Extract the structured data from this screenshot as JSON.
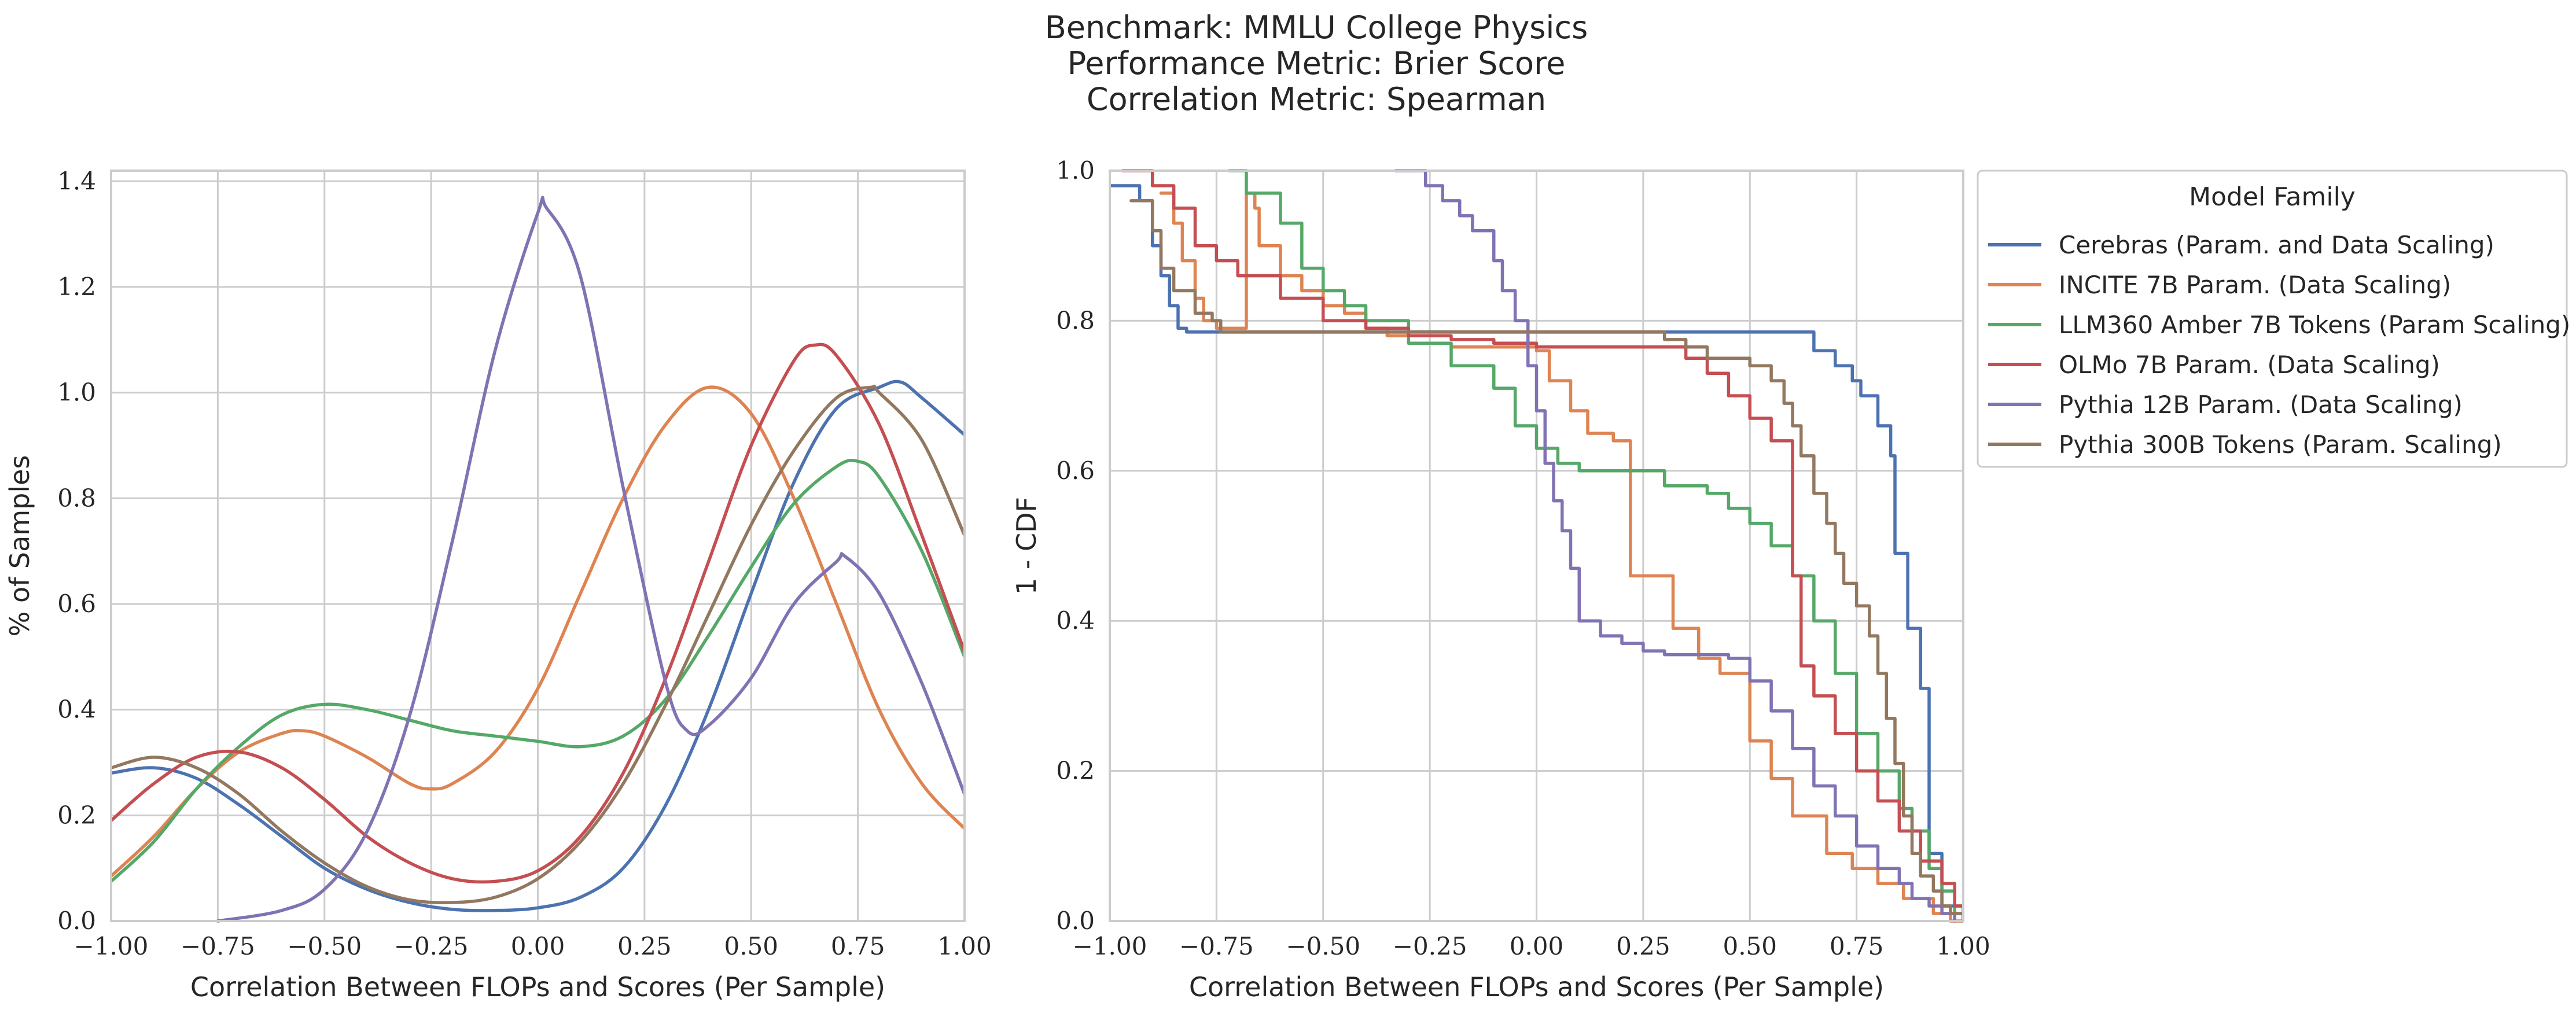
{
  "title_lines": [
    "Benchmark: MMLU College Physics",
    "Performance Metric: Brier Score",
    "Correlation Metric: Spearman"
  ],
  "legend": {
    "title": "Model Family",
    "location": "upper-right, outside plot"
  },
  "colors": {
    "Cerebras": "#4c72b0",
    "INCITE": "#dd8452",
    "LLM360": "#55a868",
    "OLMo": "#c44e52",
    "Pythia12B": "#8172b3",
    "Pythia300B": "#937860"
  },
  "chart_data": [
    {
      "type": "line",
      "subtype": "kde",
      "xlabel": "Correlation Between FLOPs and Scores (Per Sample)",
      "ylabel": "% of Samples",
      "xlim": [
        -1.0,
        1.0
      ],
      "ylim": [
        0.0,
        1.42
      ],
      "x_ticks": [
        "−1.00",
        "−0.75",
        "−0.50",
        "−0.25",
        "0.00",
        "0.25",
        "0.50",
        "0.75",
        "1.00"
      ],
      "y_ticks": [
        "0.0",
        "0.2",
        "0.4",
        "0.6",
        "0.8",
        "1.0",
        "1.2",
        "1.4"
      ],
      "grid": true,
      "series": [
        {
          "name": "Cerebras (Param. and Data Scaling)",
          "color": "#4c72b0",
          "x": [
            -1.0,
            -0.9,
            -0.8,
            -0.7,
            -0.6,
            -0.5,
            -0.4,
            -0.3,
            -0.2,
            -0.1,
            0.0,
            0.1,
            0.2,
            0.3,
            0.4,
            0.5,
            0.6,
            0.7,
            0.8,
            0.85,
            0.9,
            1.0
          ],
          "y": [
            0.28,
            0.29,
            0.27,
            0.22,
            0.16,
            0.1,
            0.06,
            0.035,
            0.022,
            0.02,
            0.025,
            0.045,
            0.1,
            0.22,
            0.4,
            0.62,
            0.83,
            0.97,
            1.01,
            1.02,
            0.99,
            0.92
          ]
        },
        {
          "name": "INCITE 7B Param. (Data Scaling)",
          "color": "#dd8452",
          "x": [
            -1.0,
            -0.9,
            -0.8,
            -0.7,
            -0.6,
            -0.55,
            -0.5,
            -0.4,
            -0.3,
            -0.25,
            -0.2,
            -0.1,
            0.0,
            0.1,
            0.2,
            0.3,
            0.4,
            0.5,
            0.6,
            0.7,
            0.8,
            0.9,
            1.0
          ],
          "y": [
            0.085,
            0.16,
            0.25,
            0.32,
            0.355,
            0.36,
            0.35,
            0.31,
            0.26,
            0.25,
            0.26,
            0.32,
            0.44,
            0.62,
            0.8,
            0.94,
            1.01,
            0.96,
            0.8,
            0.6,
            0.4,
            0.26,
            0.175
          ]
        },
        {
          "name": "LLM360 Amber 7B Tokens (Param Scaling)",
          "color": "#55a868",
          "x": [
            -1.0,
            -0.9,
            -0.8,
            -0.7,
            -0.6,
            -0.5,
            -0.4,
            -0.3,
            -0.2,
            -0.1,
            0.0,
            0.1,
            0.2,
            0.3,
            0.4,
            0.5,
            0.6,
            0.7,
            0.75,
            0.8,
            0.9,
            1.0
          ],
          "y": [
            0.075,
            0.15,
            0.25,
            0.33,
            0.39,
            0.41,
            0.4,
            0.38,
            0.36,
            0.35,
            0.34,
            0.33,
            0.35,
            0.42,
            0.54,
            0.67,
            0.79,
            0.86,
            0.87,
            0.84,
            0.7,
            0.5
          ]
        },
        {
          "name": "OLMo 7B Param. (Data Scaling)",
          "color": "#c44e52",
          "x": [
            -1.0,
            -0.9,
            -0.8,
            -0.7,
            -0.6,
            -0.5,
            -0.4,
            -0.3,
            -0.2,
            -0.1,
            0.0,
            0.1,
            0.2,
            0.3,
            0.4,
            0.5,
            0.6,
            0.65,
            0.7,
            0.8,
            0.9,
            1.0
          ],
          "y": [
            0.19,
            0.26,
            0.31,
            0.32,
            0.29,
            0.23,
            0.16,
            0.11,
            0.08,
            0.075,
            0.095,
            0.16,
            0.28,
            0.46,
            0.68,
            0.9,
            1.06,
            1.09,
            1.07,
            0.94,
            0.73,
            0.51
          ]
        },
        {
          "name": "Pythia 12B Param. (Data Scaling)",
          "color": "#8172b3",
          "x": [
            -0.75,
            -0.6,
            -0.5,
            -0.4,
            -0.3,
            -0.2,
            -0.1,
            0.0,
            0.02,
            0.1,
            0.2,
            0.3,
            0.35,
            0.4,
            0.5,
            0.6,
            0.7,
            0.72,
            0.8,
            0.9,
            1.0
          ],
          "y": [
            0.0,
            0.02,
            0.06,
            0.17,
            0.39,
            0.72,
            1.08,
            1.34,
            1.35,
            1.22,
            0.82,
            0.45,
            0.36,
            0.37,
            0.46,
            0.6,
            0.68,
            0.69,
            0.62,
            0.45,
            0.24
          ]
        },
        {
          "name": "Pythia 300B Tokens (Param. Scaling)",
          "color": "#937860",
          "x": [
            -1.0,
            -0.9,
            -0.8,
            -0.7,
            -0.6,
            -0.5,
            -0.4,
            -0.3,
            -0.2,
            -0.1,
            0.0,
            0.1,
            0.2,
            0.3,
            0.4,
            0.5,
            0.6,
            0.7,
            0.78,
            0.8,
            0.9,
            1.0
          ],
          "y": [
            0.29,
            0.31,
            0.29,
            0.24,
            0.17,
            0.11,
            0.065,
            0.04,
            0.035,
            0.045,
            0.08,
            0.15,
            0.26,
            0.41,
            0.58,
            0.75,
            0.89,
            0.99,
            1.01,
            1.0,
            0.91,
            0.73
          ]
        }
      ]
    },
    {
      "type": "line",
      "subtype": "step",
      "xlabel": "Correlation Between FLOPs and Scores (Per Sample)",
      "ylabel": "1 - CDF",
      "xlim": [
        -1.0,
        1.0
      ],
      "ylim": [
        0.0,
        1.0
      ],
      "x_ticks": [
        "−1.00",
        "−0.75",
        "−0.50",
        "−0.25",
        "0.00",
        "0.25",
        "0.50",
        "0.75",
        "1.00"
      ],
      "y_ticks": [
        "0.0",
        "0.2",
        "0.4",
        "0.6",
        "0.8",
        "1.0"
      ],
      "grid": true,
      "series": [
        {
          "name": "Cerebras (Param. and Data Scaling)",
          "color": "#4c72b0",
          "x": [
            -1.0,
            -0.96,
            -0.93,
            -0.9,
            -0.88,
            -0.86,
            -0.84,
            -0.82,
            0.6,
            0.65,
            0.7,
            0.74,
            0.76,
            0.8,
            0.83,
            0.84,
            0.87,
            0.9,
            0.92,
            0.95,
            0.98,
            1.0
          ],
          "y": [
            0.98,
            0.98,
            0.96,
            0.9,
            0.86,
            0.82,
            0.79,
            0.785,
            0.785,
            0.76,
            0.74,
            0.72,
            0.7,
            0.66,
            0.62,
            0.49,
            0.39,
            0.31,
            0.09,
            0.02,
            0.02,
            0.02
          ]
        },
        {
          "name": "INCITE 7B Param. (Data Scaling)",
          "color": "#dd8452",
          "x": [
            -0.88,
            -0.85,
            -0.83,
            -0.8,
            -0.78,
            -0.75,
            -0.68,
            -0.66,
            -0.65,
            -0.6,
            -0.55,
            -0.5,
            -0.45,
            -0.4,
            -0.35,
            -0.3,
            -0.2,
            0.0,
            0.03,
            0.08,
            0.12,
            0.18,
            0.22,
            0.32,
            0.38,
            0.43,
            0.5,
            0.55,
            0.6,
            0.68,
            0.74,
            0.8,
            0.86,
            0.93,
            0.97,
            1.0
          ],
          "y": [
            0.97,
            0.93,
            0.88,
            0.83,
            0.8,
            0.79,
            0.97,
            0.95,
            0.9,
            0.86,
            0.84,
            0.82,
            0.81,
            0.79,
            0.78,
            0.77,
            0.765,
            0.76,
            0.72,
            0.68,
            0.65,
            0.64,
            0.46,
            0.39,
            0.35,
            0.33,
            0.24,
            0.19,
            0.14,
            0.09,
            0.07,
            0.05,
            0.03,
            0.01,
            0.0,
            0.0
          ]
        },
        {
          "name": "LLM360 Amber 7B Tokens (Param Scaling)",
          "color": "#55a868",
          "x": [
            -0.72,
            -0.68,
            -0.6,
            -0.55,
            -0.5,
            -0.45,
            -0.4,
            -0.3,
            -0.2,
            -0.1,
            -0.05,
            0.0,
            0.05,
            0.1,
            0.2,
            0.3,
            0.4,
            0.45,
            0.5,
            0.55,
            0.6,
            0.65,
            0.7,
            0.75,
            0.8,
            0.85,
            0.88,
            0.92,
            0.95,
            0.98,
            1.0
          ],
          "y": [
            1.0,
            0.97,
            0.93,
            0.87,
            0.84,
            0.82,
            0.8,
            0.77,
            0.74,
            0.71,
            0.66,
            0.63,
            0.61,
            0.6,
            0.6,
            0.58,
            0.57,
            0.55,
            0.53,
            0.5,
            0.46,
            0.4,
            0.33,
            0.25,
            0.2,
            0.15,
            0.12,
            0.07,
            0.04,
            0.01,
            0.0
          ]
        },
        {
          "name": "OLMo 7B Param. (Data Scaling)",
          "color": "#c44e52",
          "x": [
            -0.97,
            -0.9,
            -0.85,
            -0.8,
            -0.75,
            -0.7,
            -0.6,
            -0.5,
            -0.4,
            -0.3,
            -0.2,
            -0.1,
            0.0,
            0.3,
            0.35,
            0.4,
            0.45,
            0.5,
            0.55,
            0.6,
            0.62,
            0.65,
            0.7,
            0.75,
            0.8,
            0.85,
            0.9,
            0.95,
            0.98,
            1.0
          ],
          "y": [
            1.0,
            0.98,
            0.95,
            0.9,
            0.88,
            0.86,
            0.83,
            0.8,
            0.79,
            0.78,
            0.775,
            0.77,
            0.765,
            0.765,
            0.75,
            0.73,
            0.7,
            0.67,
            0.64,
            0.46,
            0.34,
            0.3,
            0.25,
            0.2,
            0.16,
            0.12,
            0.08,
            0.05,
            0.02,
            0.0
          ]
        },
        {
          "name": "Pythia 12B Param. (Data Scaling)",
          "color": "#8172b3",
          "x": [
            -0.33,
            -0.26,
            -0.22,
            -0.18,
            -0.15,
            -0.1,
            -0.08,
            -0.05,
            -0.02,
            0.0,
            0.02,
            0.04,
            0.06,
            0.08,
            0.1,
            0.15,
            0.2,
            0.25,
            0.3,
            0.45,
            0.5,
            0.55,
            0.6,
            0.65,
            0.7,
            0.75,
            0.8,
            0.85,
            0.88,
            0.92,
            0.95,
            0.98
          ],
          "y": [
            1.0,
            0.98,
            0.96,
            0.94,
            0.92,
            0.88,
            0.84,
            0.8,
            0.74,
            0.68,
            0.61,
            0.56,
            0.52,
            0.47,
            0.4,
            0.38,
            0.37,
            0.36,
            0.355,
            0.35,
            0.32,
            0.28,
            0.23,
            0.18,
            0.14,
            0.1,
            0.07,
            0.05,
            0.03,
            0.02,
            0.01,
            0.0
          ]
        },
        {
          "name": "Pythia 300B Tokens (Param. Scaling)",
          "color": "#937860",
          "x": [
            -0.95,
            -0.9,
            -0.88,
            -0.85,
            -0.8,
            -0.76,
            -0.74,
            0.2,
            0.3,
            0.35,
            0.4,
            0.5,
            0.55,
            0.58,
            0.6,
            0.62,
            0.65,
            0.68,
            0.7,
            0.72,
            0.75,
            0.78,
            0.8,
            0.82,
            0.84,
            0.86,
            0.88,
            0.9,
            0.93,
            0.95,
            0.97,
            1.0
          ],
          "y": [
            0.96,
            0.92,
            0.87,
            0.84,
            0.81,
            0.8,
            0.785,
            0.785,
            0.775,
            0.765,
            0.75,
            0.74,
            0.72,
            0.69,
            0.66,
            0.62,
            0.57,
            0.53,
            0.49,
            0.45,
            0.42,
            0.38,
            0.33,
            0.27,
            0.21,
            0.14,
            0.09,
            0.06,
            0.04,
            0.02,
            0.01,
            0.0
          ]
        }
      ]
    }
  ]
}
